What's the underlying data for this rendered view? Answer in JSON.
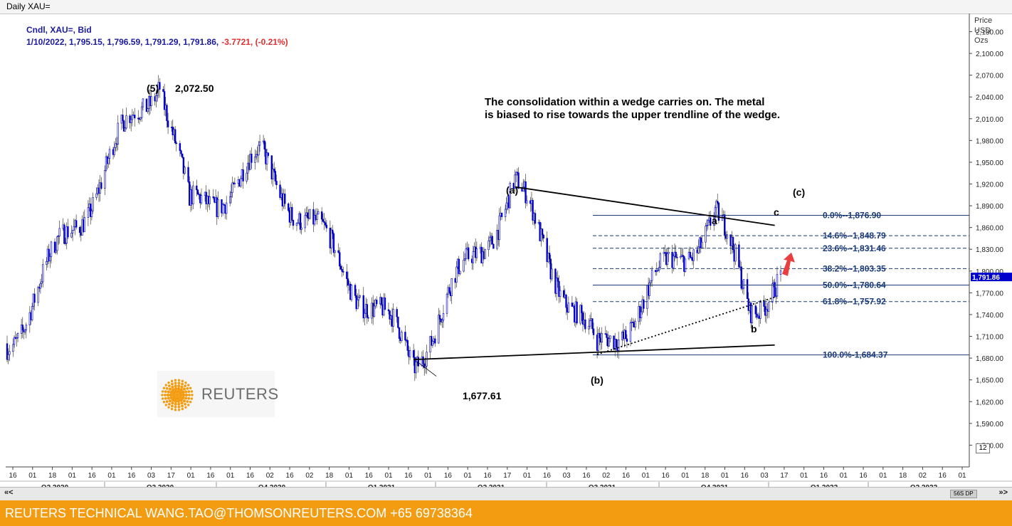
{
  "window": {
    "title": "Daily XAU="
  },
  "legend": {
    "line1": "Cndl, XAU=, Bid",
    "ohlc": "1/10/2022, 1,795.15, 1,796.59, 1,791.29, 1,791.86,",
    "change": "-3.7721, (-0.21%)"
  },
  "price_axis": {
    "header": [
      "Price",
      "USD",
      "Ozs"
    ],
    "last_price": "1,791.86"
  },
  "annotation": {
    "line1": "The consolidation within a wedge carries on. The metal",
    "line2": "is biased to rise towards the upper trendline of the wedge."
  },
  "labels": {
    "wave5": "(5)",
    "wave5_price": "2,072.50",
    "wave_a_big": "(a)",
    "wave_b_big": "(b)",
    "wave_c_big": "(c)",
    "wave_a": "a",
    "wave_b": "b",
    "wave_c": "c",
    "low_price": "1,677.61"
  },
  "fibonacci": [
    {
      "label": "0.0%--1,876.90",
      "value": 1876.9,
      "style": "solid"
    },
    {
      "label": "14.6%--1,848.79",
      "value": 1848.79,
      "style": "dashed"
    },
    {
      "label": "23.6%--1,831.46",
      "value": 1831.46,
      "style": "dashed"
    },
    {
      "label": "38.2%--1,803.35",
      "value": 1803.35,
      "style": "dashed"
    },
    {
      "label": "50.0%--1,780.64",
      "value": 1780.64,
      "style": "solid"
    },
    {
      "label": "61.8%--1,757.92",
      "value": 1757.92,
      "style": "dashed"
    },
    {
      "label": "100.0%-1,684.37",
      "value": 1684.37,
      "style": "solid"
    }
  ],
  "scrollbar": {
    "left": "«<",
    "right": "»>",
    "tag": "56S DP"
  },
  "zoom": "12",
  "footer": {
    "text": "REUTERS TECHNICAL  WANG.TAO@THOMSONREUTERS.COM  +65 69738364"
  },
  "logo": {
    "word": "REUTERS"
  },
  "colors": {
    "candle": "#0000cc",
    "fib": "#1a3a78",
    "accent_red": "#e84040",
    "footer": "#f39c12"
  },
  "chart_data": {
    "type": "candlestick",
    "title": "Daily XAU=",
    "ylabel": "Price USD Ozs",
    "ylim": [
      1530,
      2155
    ],
    "yticks": [
      "2,130.00",
      "2,100.00",
      "2,070.00",
      "2,040.00",
      "2,010.00",
      "1,980.00",
      "1,950.00",
      "1,920.00",
      "1,890.00",
      "1,860.00",
      "1,830.00",
      "1,800.00",
      "1,770.00",
      "1,740.00",
      "1,710.00",
      "1,680.00",
      "1,650.00",
      "1,620.00",
      "1,590.00",
      "1,560.00"
    ],
    "x_day_ticks": [
      "16",
      "01",
      "18",
      "01",
      "16",
      "01",
      "16",
      "03",
      "17",
      "01",
      "16",
      "01",
      "16",
      "02",
      "16",
      "02",
      "18",
      "01",
      "16",
      "01",
      "16",
      "01",
      "16",
      "01",
      "16",
      "17",
      "01",
      "16",
      "03",
      "16",
      "02",
      "16",
      "01",
      "16",
      "01",
      "18",
      "01",
      "16",
      "03",
      "17",
      "01",
      "16",
      "01",
      "16",
      "01",
      "18",
      "02",
      "16",
      "01"
    ],
    "x_quarters": [
      "Q2 2020",
      "Q3 2020",
      "Q4 2020",
      "Q1 2021",
      "Q2 2021",
      "Q3 2021",
      "Q4 2021",
      "Q1 2022",
      "Q2 2022"
    ],
    "key_points": [
      {
        "x": "2020-04",
        "y": 1700
      },
      {
        "x": "2020-08-07",
        "y": 2072.5,
        "label": "(5)"
      },
      {
        "x": "2020-09",
        "y": 1880
      },
      {
        "x": "2020-11",
        "y": 1950
      },
      {
        "x": "2021-03-08",
        "y": 1677.61
      },
      {
        "x": "2021-06-01",
        "y": 1916,
        "label": "(a)"
      },
      {
        "x": "2021-08-09",
        "y": 1684.37,
        "label": "(b)"
      },
      {
        "x": "2021-11-16",
        "y": 1876.9,
        "label": "a"
      },
      {
        "x": "2021-12-15",
        "y": 1753,
        "label": "b"
      },
      {
        "x": "2022-01-10",
        "y": 1791.86
      }
    ],
    "last": {
      "date": "1/10/2022",
      "open": 1795.15,
      "high": 1796.59,
      "low": 1791.29,
      "close": 1791.86
    }
  }
}
